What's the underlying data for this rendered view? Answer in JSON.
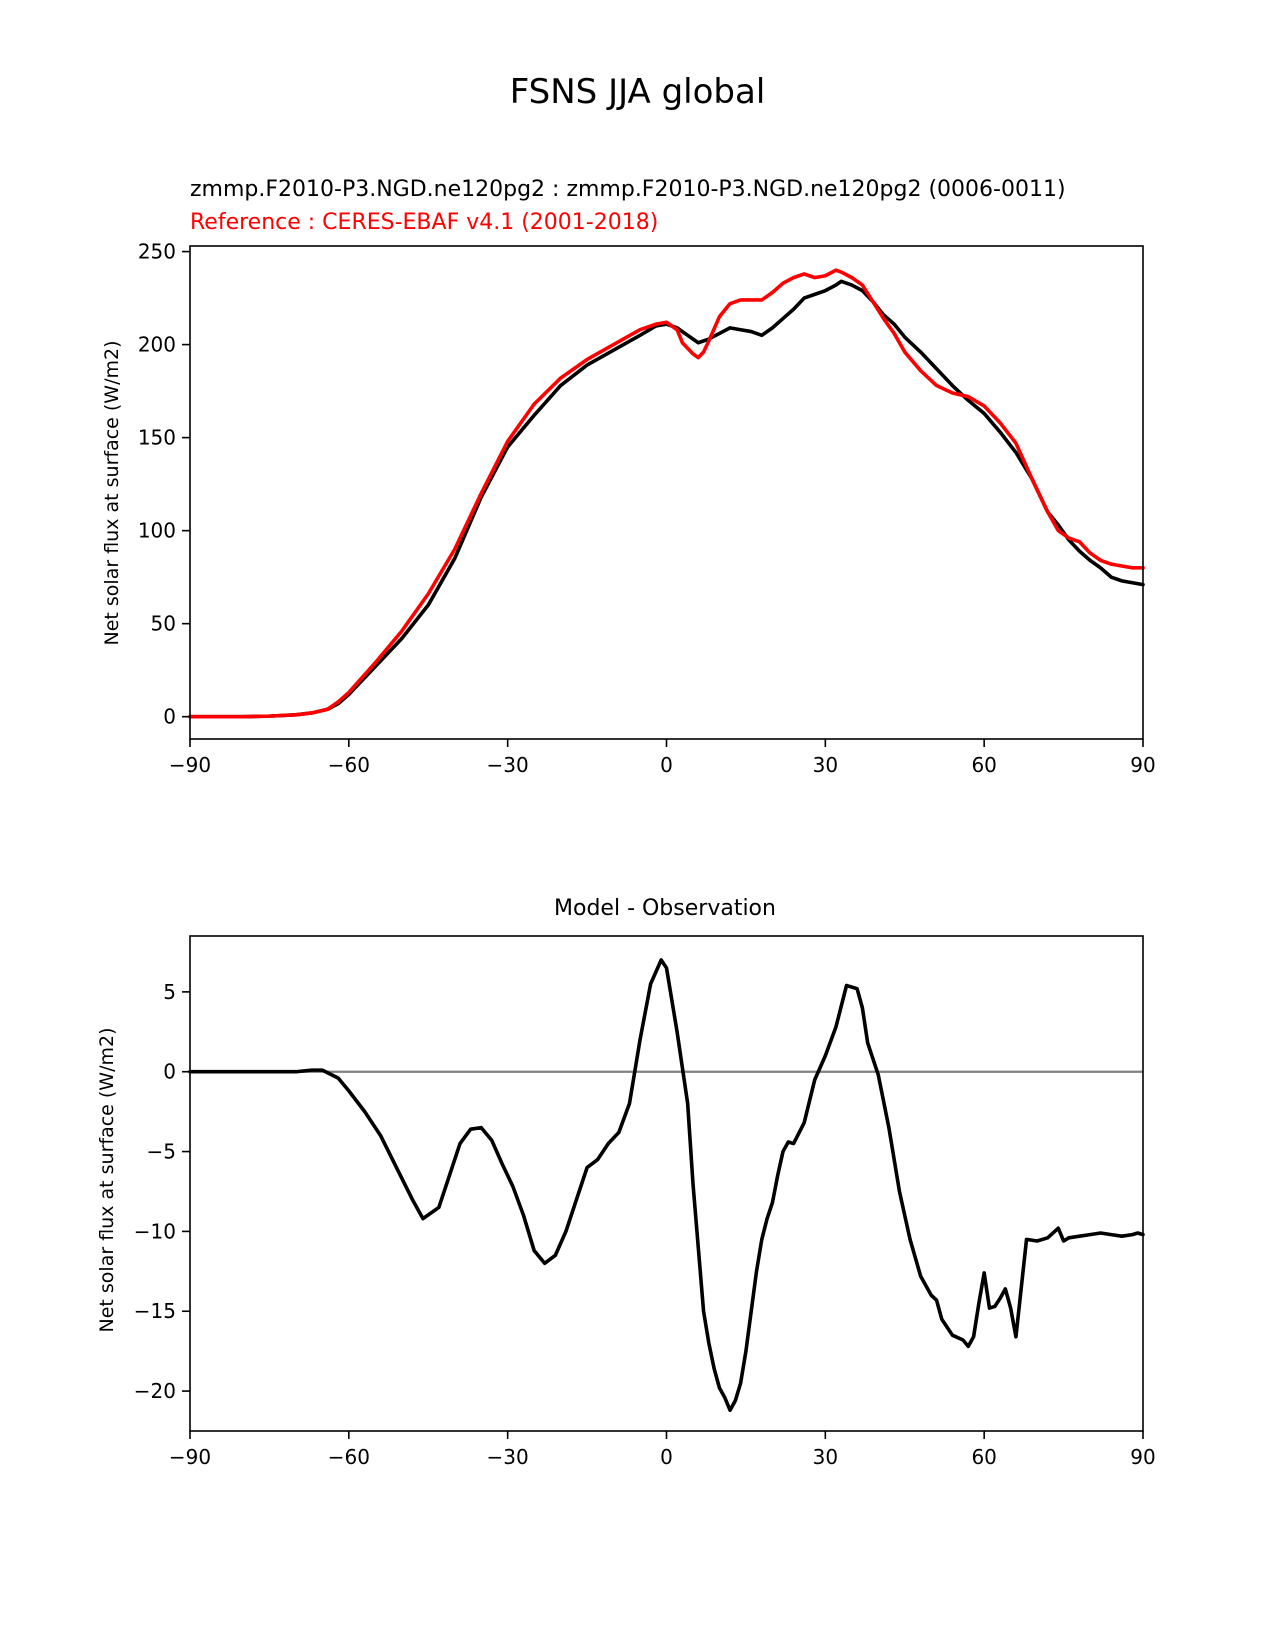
{
  "figure": {
    "title": "FSNS JJA global"
  },
  "chart_data": [
    {
      "type": "line",
      "title": "",
      "subtitle_test": "zmmp.F2010-P3.NGD.ne120pg2 : zmmp.F2010-P3.NGD.ne120pg2 (0006-0011)",
      "subtitle_reference": "Reference : CERES-EBAF v4.1 (2001-2018)",
      "xlabel": "",
      "ylabel": "Net solar flux at surface (W/m2)",
      "xlim": [
        -90,
        90
      ],
      "ylim": [
        -12,
        253
      ],
      "xticks": [
        -90,
        -60,
        -30,
        0,
        30,
        60,
        90
      ],
      "xtick_labels": [
        "−90",
        "−60",
        "−30",
        "0",
        "30",
        "60",
        "90"
      ],
      "yticks": [
        0,
        50,
        100,
        150,
        200,
        250
      ],
      "ytick_labels": [
        "0",
        "50",
        "100",
        "150",
        "200",
        "250"
      ],
      "grid": false,
      "series": [
        {
          "color": "#000000",
          "x": [
            -90,
            -80,
            -75,
            -70,
            -67,
            -64,
            -62,
            -60,
            -55,
            -50,
            -45,
            -40,
            -35,
            -30,
            -25,
            -20,
            -15,
            -10,
            -5,
            -2,
            0,
            2,
            4,
            6,
            8,
            10,
            12,
            14,
            16,
            18,
            20,
            22,
            24,
            26,
            28,
            30,
            32,
            33,
            35,
            37,
            39,
            41,
            43,
            45,
            48,
            51,
            54,
            57,
            60,
            63,
            66,
            69,
            72,
            74,
            76,
            78,
            80,
            82,
            84,
            86,
            88,
            90
          ],
          "y": [
            0,
            0,
            0.3,
            1,
            2,
            4,
            7,
            12,
            27,
            42,
            60,
            85,
            118,
            145,
            162,
            178,
            189,
            197,
            205,
            210,
            211,
            209,
            205,
            201,
            203,
            206,
            209,
            208,
            207,
            205,
            209,
            214,
            219,
            225,
            227,
            229,
            232,
            234,
            232,
            229,
            223,
            216,
            211,
            204,
            196,
            187,
            178,
            170,
            163,
            153,
            142,
            128,
            110,
            103,
            95,
            89,
            84,
            80,
            75,
            73,
            72,
            71
          ]
        },
        {
          "color": "#ff0000",
          "x": [
            -90,
            -80,
            -75,
            -70,
            -67,
            -64,
            -62,
            -60,
            -55,
            -50,
            -45,
            -40,
            -35,
            -30,
            -25,
            -20,
            -15,
            -10,
            -5,
            -2,
            0,
            2,
            3,
            5,
            6,
            7,
            8,
            10,
            12,
            14,
            16,
            18,
            20,
            22,
            24,
            26,
            28,
            30,
            32,
            33,
            35,
            37,
            39,
            41,
            43,
            45,
            48,
            51,
            54,
            57,
            60,
            63,
            66,
            69,
            72,
            74,
            76,
            78,
            80,
            82,
            84,
            86,
            88,
            90
          ],
          "y": [
            0,
            0,
            0.3,
            1,
            2,
            4,
            8,
            13,
            29,
            46,
            66,
            90,
            120,
            148,
            168,
            182,
            192,
            200,
            208,
            211,
            212,
            208,
            201,
            195,
            193,
            196,
            202,
            215,
            222,
            224,
            224,
            224,
            228,
            233,
            236,
            238,
            236,
            237,
            240,
            239,
            236,
            232,
            223,
            214,
            206,
            196,
            186,
            178,
            174,
            172,
            167,
            158,
            147,
            128,
            110,
            100,
            96,
            94,
            88,
            84,
            82,
            81,
            80,
            80
          ]
        }
      ]
    },
    {
      "type": "line",
      "title": "Model - Observation",
      "xlabel": "",
      "ylabel": "Net solar flux at surface (W/m2)",
      "xlim": [
        -90,
        90
      ],
      "ylim": [
        -22.5,
        8.5
      ],
      "xticks": [
        -90,
        -60,
        -30,
        0,
        30,
        60,
        90
      ],
      "xtick_labels": [
        "−90",
        "−60",
        "−30",
        "0",
        "30",
        "60",
        "90"
      ],
      "yticks": [
        5,
        0,
        -5,
        -10,
        -15,
        -20
      ],
      "ytick_labels": [
        "5",
        "0",
        "−5",
        "−10",
        "−15",
        "−20"
      ],
      "grid": false,
      "zero_line_color": "#808080",
      "series": [
        {
          "color": "#000000",
          "x": [
            -90,
            -80,
            -75,
            -70,
            -67,
            -65,
            -62,
            -60,
            -57,
            -54,
            -51,
            -48,
            -46,
            -43,
            -41,
            -39,
            -37,
            -35,
            -33,
            -31,
            -30,
            -29,
            -27,
            -25,
            -23,
            -21,
            -19,
            -17,
            -15,
            -13,
            -11,
            -9,
            -7,
            -5,
            -3,
            -1,
            0,
            2,
            4,
            5,
            6,
            7,
            8,
            9,
            10,
            11,
            12,
            13,
            14,
            15,
            16,
            17,
            18,
            19,
            20,
            21,
            22,
            23,
            24,
            26,
            28,
            30,
            32,
            34,
            36,
            37,
            38,
            40,
            42,
            44,
            46,
            48,
            50,
            51,
            52,
            54,
            56,
            57,
            58,
            59,
            60,
            61,
            62,
            63,
            64,
            65,
            66,
            68,
            70,
            72,
            74,
            75,
            76,
            78,
            80,
            82,
            84,
            86,
            88,
            89,
            90
          ],
          "y": [
            0,
            0,
            0,
            0,
            0.1,
            0.1,
            -0.4,
            -1.2,
            -2.5,
            -4,
            -6,
            -8,
            -9.2,
            -8.5,
            -6.5,
            -4.5,
            -3.6,
            -3.5,
            -4.3,
            -5.8,
            -6.5,
            -7.2,
            -9,
            -11.2,
            -12,
            -11.5,
            -10,
            -8,
            -6,
            -5.5,
            -4.5,
            -3.8,
            -2,
            2,
            5.5,
            7,
            6.5,
            2.5,
            -2,
            -7,
            -11,
            -15,
            -17,
            -18.6,
            -19.8,
            -20.4,
            -21.2,
            -20.6,
            -19.5,
            -17.5,
            -15,
            -12.5,
            -10.5,
            -9.2,
            -8.2,
            -6.5,
            -5,
            -4.4,
            -4.5,
            -3.2,
            -0.5,
            1,
            2.8,
            5.4,
            5.2,
            4,
            1.8,
            -0.2,
            -3.5,
            -7.5,
            -10.5,
            -12.8,
            -14,
            -14.3,
            -15.5,
            -16.5,
            -16.8,
            -17.2,
            -16.6,
            -14.5,
            -12.6,
            -14.8,
            -14.7,
            -14.2,
            -13.6,
            -14.8,
            -16.6,
            -10.5,
            -10.6,
            -10.4,
            -9.8,
            -10.6,
            -10.4,
            -10.3,
            -10.2,
            -10.1,
            -10.2,
            -10.3,
            -10.2,
            -10.1,
            -10.2
          ]
        }
      ]
    }
  ]
}
